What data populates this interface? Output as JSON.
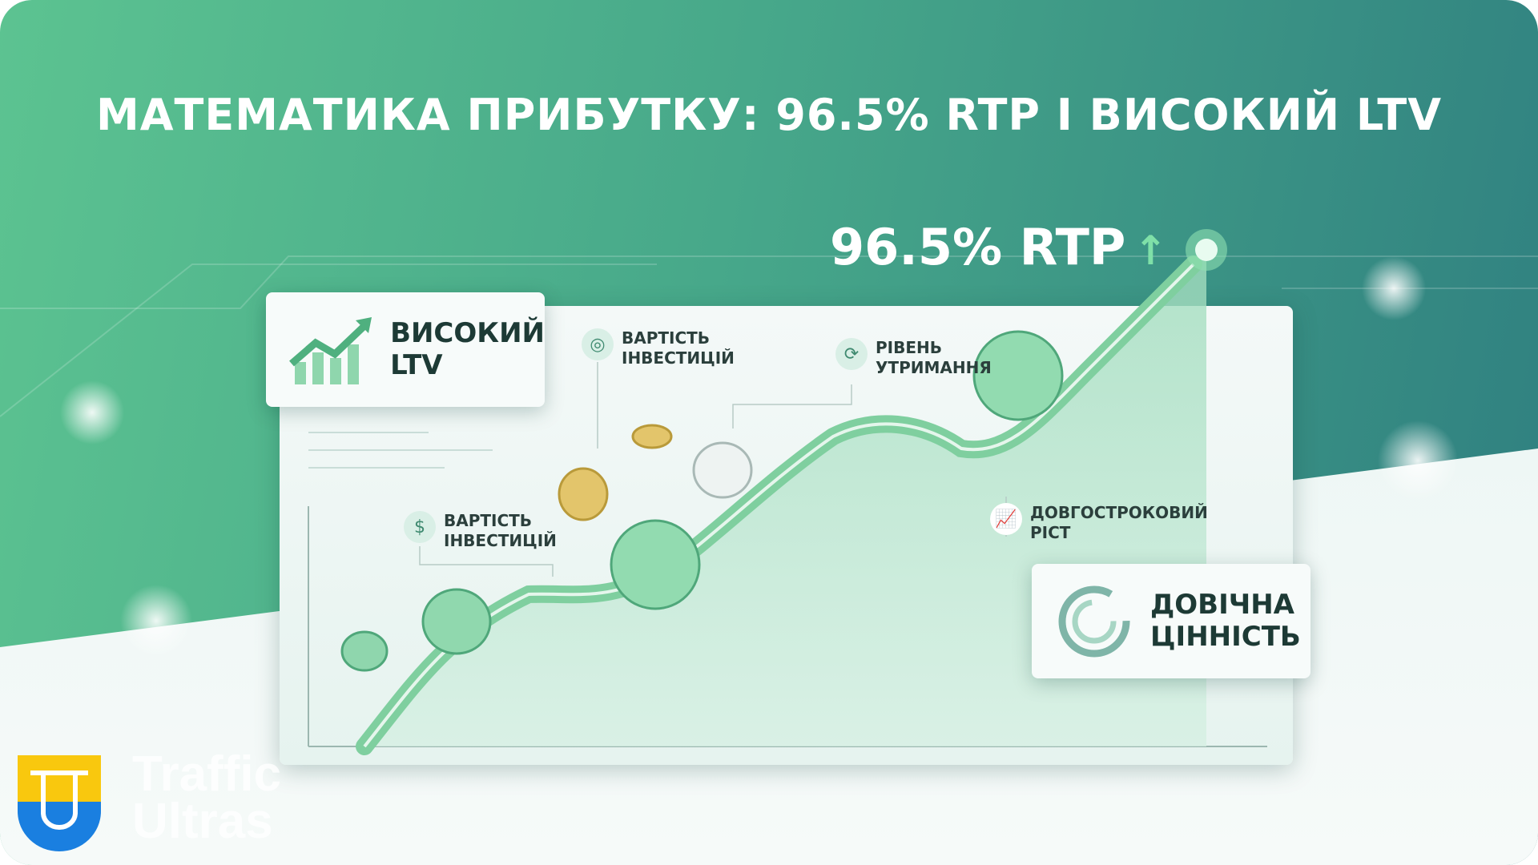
{
  "title": "МАТЕМАТИКА ПРИБУТКУ: 96.5% RTP І ВИСОКИЙ LTV",
  "rtp_label": "96.5% RTP",
  "rtp_arrow": "↑",
  "ltv_card": {
    "text_line1": "ВИСОКИЙ",
    "text_line2": "LTV",
    "icon": "growth-bars-icon"
  },
  "lifetime_card": {
    "text_line1": "ДОВІЧНА",
    "text_line2": "ЦІННІСТЬ",
    "icon": "ring-chart-icon"
  },
  "labels": [
    {
      "line1": "ВАРТІСТЬ",
      "line2": "ІНВЕСТИЦІЙ",
      "icon": "hand-coin-icon"
    },
    {
      "line1": "РІВЕНЬ",
      "line2": "УТРИМАННЯ",
      "icon": "refresh-icon"
    },
    {
      "line1": "ВАРТІСТЬ",
      "line2": "ІНВЕСТИЦІЙ",
      "icon": "money-bag-icon"
    },
    {
      "line1": "ДОВГОСТРОКОВИЙ",
      "line2": "РІСТ",
      "icon": "chart-icon"
    }
  ],
  "logo": {
    "line1": "Traffic",
    "line2": "Ultras",
    "colors": [
      "#f9c80e",
      "#1a7fe0"
    ]
  },
  "colors": {
    "accent": "#5cc391",
    "teal": "#2f7f80",
    "text": "#1d3a35"
  }
}
